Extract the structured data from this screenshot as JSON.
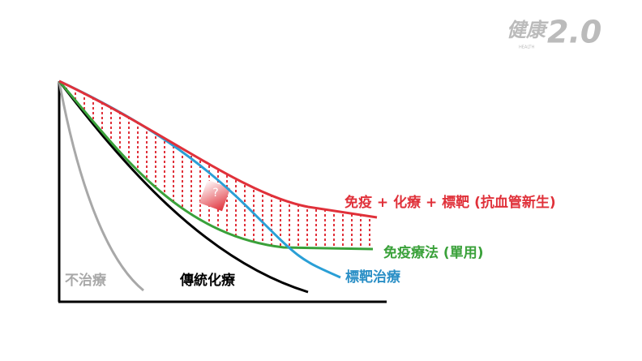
{
  "logo": {
    "brand": "健康",
    "version": "2.0",
    "tagline": "HEALTH"
  },
  "question_mark": "?",
  "curves": [
    {
      "label": "免疫 + 化療 + 標靶 (抗血管新生)"
    },
    {
      "label": "免疫療法 (單用)"
    },
    {
      "label": "標靶治療"
    },
    {
      "label": "傳統化療"
    },
    {
      "label": "不治療"
    }
  ]
}
